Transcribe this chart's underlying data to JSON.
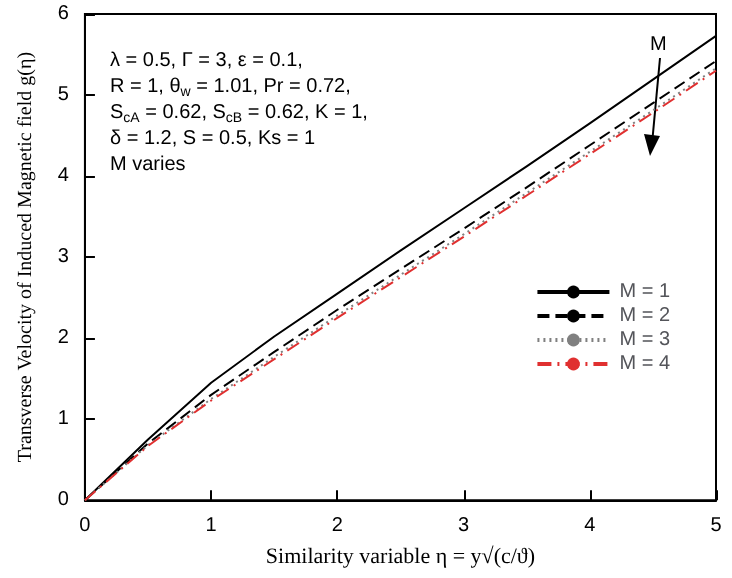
{
  "chart_data": {
    "type": "line",
    "xlabel": "Similarity variable η = y√(c/ϑ)",
    "ylabel": "Transverse Velocity of Induced Magnetic field g(η)",
    "x": [
      0,
      0.5,
      1,
      1.5,
      2,
      2.5,
      3,
      3.5,
      4,
      4.5,
      5
    ],
    "series": [
      {
        "name": "M = 1",
        "color": "#000000",
        "line_style": "solid",
        "values": [
          0,
          0.75,
          1.45,
          2.02,
          2.55,
          3.08,
          3.6,
          4.12,
          4.65,
          5.19,
          5.73
        ]
      },
      {
        "name": "M = 2",
        "color": "#000000",
        "line_style": "dashed",
        "values": [
          0,
          0.7,
          1.3,
          1.83,
          2.35,
          2.85,
          3.35,
          3.86,
          4.38,
          4.9,
          5.42
        ]
      },
      {
        "name": "M = 3",
        "color": "#808080",
        "line_style": "dotted",
        "values": [
          0,
          0.68,
          1.25,
          1.77,
          2.28,
          2.78,
          3.28,
          3.79,
          4.3,
          4.81,
          5.33
        ]
      },
      {
        "name": "M = 4",
        "color": "#e03030",
        "line_style": "dashdot",
        "values": [
          0,
          0.67,
          1.23,
          1.74,
          2.25,
          2.75,
          3.25,
          3.76,
          4.27,
          4.78,
          5.3
        ]
      }
    ],
    "xlim": [
      0,
      5
    ],
    "ylim": [
      0,
      6
    ],
    "xticks": [
      0,
      1,
      2,
      3,
      4,
      5
    ],
    "yticks": [
      0,
      1,
      2,
      3,
      4,
      5,
      6
    ],
    "grid": false,
    "legend": "bottom right",
    "marker": "none",
    "annotations": [
      "λ = 0.5, Γ = 3, ε = 0.1,\nR = 1, θ$_{w}$ = 1.01, Pr = 0.72,\nS$_{cA}$ = 0.62, S$_{cB}$ = 0.62, K = 1,\nδ = 1.2, S = 0.5, Ks = 1\nM varies",
      "M"
    ]
  }
}
